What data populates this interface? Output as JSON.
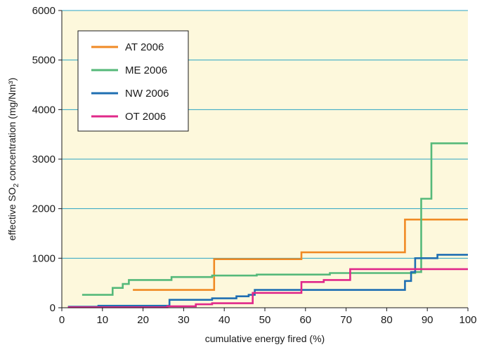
{
  "chart_data": {
    "type": "line",
    "step": true,
    "xlabel": "cumulative energy fired (%)",
    "ylabel": {
      "prefix": "effective SO",
      "subscript": "2",
      "suffix": " concentration (mg/Nm³)"
    },
    "xlim": [
      0,
      100
    ],
    "ylim": [
      0,
      6000
    ],
    "x_ticks": [
      0,
      10,
      20,
      30,
      40,
      50,
      60,
      70,
      80,
      90,
      100
    ],
    "y_ticks": [
      0,
      1000,
      2000,
      3000,
      4000,
      5000,
      6000
    ],
    "grid": "horizontal",
    "plot_background": "#fdf8dc",
    "grid_color": "#2aa3c4",
    "legend_position": "top-left",
    "series": [
      {
        "name": "AT 2006",
        "color": "#f08a24",
        "x": [
          17.5,
          36,
          37.5,
          59,
          84.5,
          100
        ],
        "y": [
          360,
          360,
          980,
          1120,
          1780,
          1780
        ]
      },
      {
        "name": "ME 2006",
        "color": "#55b97a",
        "x": [
          5,
          12.5,
          15,
          16.5,
          17.5,
          27,
          37,
          48,
          66,
          87,
          88.5,
          91,
          100
        ],
        "y": [
          260,
          400,
          480,
          560,
          560,
          620,
          650,
          670,
          700,
          720,
          2200,
          3320,
          3320
        ]
      },
      {
        "name": "NW 2006",
        "color": "#1f6fb2",
        "x": [
          1.5,
          9,
          26.5,
          37,
          43,
          46,
          47.5,
          53,
          84.5,
          86,
          87,
          92.5,
          100
        ],
        "y": [
          20,
          40,
          160,
          190,
          230,
          260,
          360,
          360,
          540,
          720,
          1000,
          1070,
          1070
        ]
      },
      {
        "name": "OT 2006",
        "color": "#e0288a",
        "x": [
          1.5,
          26,
          33,
          37,
          47,
          59,
          64.5,
          71,
          100
        ],
        "y": [
          10,
          30,
          70,
          90,
          300,
          520,
          560,
          780,
          780
        ]
      }
    ]
  }
}
